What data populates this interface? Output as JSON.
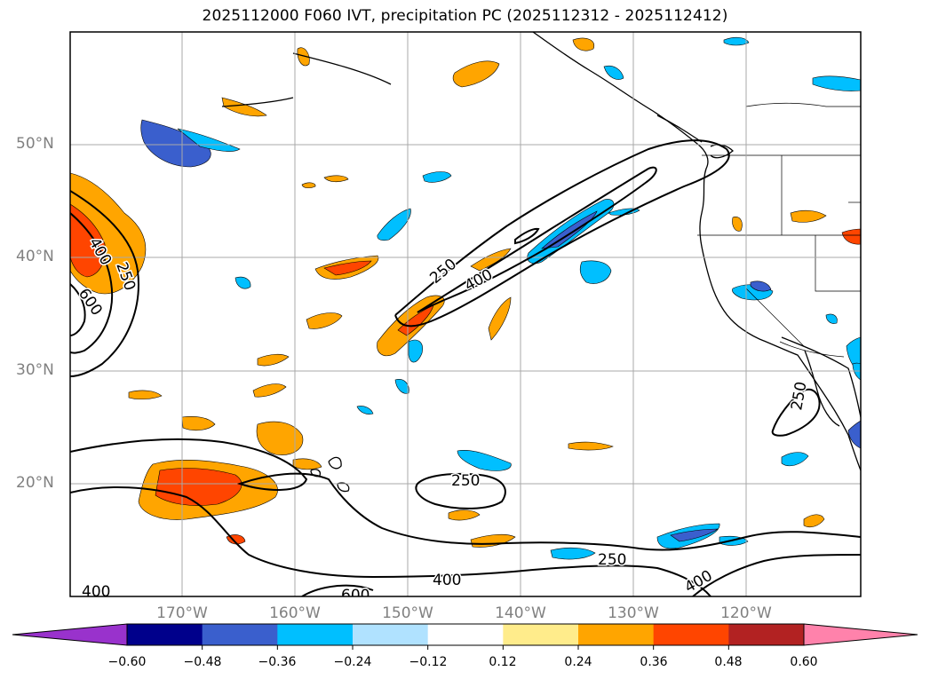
{
  "title": "2025112000 F060 IVT, precipitation PC (2025112312 - 2025112412)",
  "map": {
    "lat_labels": [
      "50°N",
      "40°N",
      "30°N",
      "20°N"
    ],
    "lon_labels": [
      "170°W",
      "160°W",
      "150°W",
      "140°W",
      "130°W",
      "120°W"
    ],
    "contour_labels": [
      "400",
      "250",
      "600",
      "250",
      "400",
      "250",
      "250",
      "250",
      "400",
      "400",
      "600",
      "400"
    ],
    "contour_levels": [
      250,
      400,
      600
    ],
    "region": "North Pacific / US West Coast"
  },
  "colorbar": {
    "ticks": [
      "−0.60",
      "−0.48",
      "−0.36",
      "−0.24",
      "−0.12",
      "0.12",
      "0.24",
      "0.36",
      "0.48",
      "0.60"
    ],
    "bins": [
      {
        "color": "#9932cc",
        "range": "< -0.60"
      },
      {
        "color": "#00008b",
        "range": "-0.60 to -0.48"
      },
      {
        "color": "#3a5fcd",
        "range": "-0.48 to -0.36"
      },
      {
        "color": "#00bfff",
        "range": "-0.36 to -0.24"
      },
      {
        "color": "#b0e2ff",
        "range": "-0.24 to -0.12"
      },
      {
        "color": "#ffffff",
        "range": "-0.12 to 0.12"
      },
      {
        "color": "#ffec8b",
        "range": "0.12 to 0.24"
      },
      {
        "color": "#ffa500",
        "range": "0.24 to 0.36"
      },
      {
        "color": "#ff4500",
        "range": "0.36 to 0.48"
      },
      {
        "color": "#b22222",
        "range": "0.48 to 0.60"
      },
      {
        "color": "#ff82ab",
        "range": "> 0.60"
      }
    ]
  }
}
